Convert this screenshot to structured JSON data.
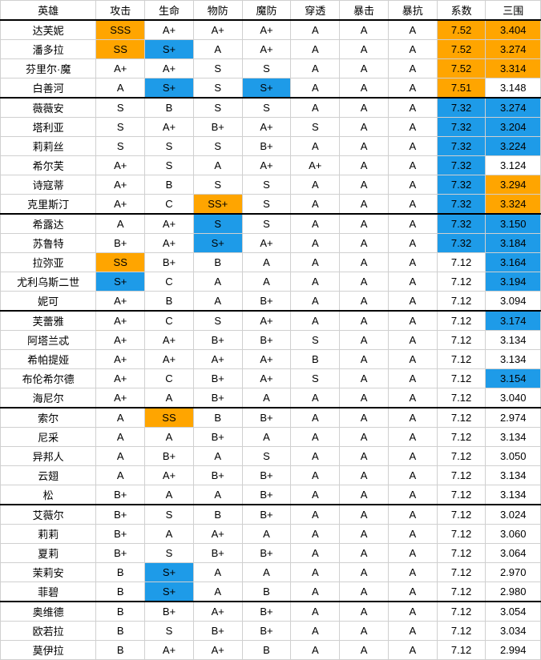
{
  "headers": [
    "英雄",
    "攻击",
    "生命",
    "物防",
    "魔防",
    "穿透",
    "暴击",
    "暴抗",
    "系数",
    "三围"
  ],
  "colors": {
    "orange": "#ffa500",
    "blue": "#1e9be8"
  },
  "rows": [
    {
      "cells": [
        "达芙妮",
        "SSS",
        "A+",
        "A+",
        "A+",
        "A",
        "A",
        "A",
        "7.52",
        "3.404"
      ],
      "hl": {
        "1": "orange",
        "8": "orange",
        "9": "orange"
      },
      "sep": true
    },
    {
      "cells": [
        "潘多拉",
        "SS",
        "S+",
        "A",
        "A+",
        "A",
        "A",
        "A",
        "7.52",
        "3.274"
      ],
      "hl": {
        "1": "orange",
        "2": "blue",
        "8": "orange",
        "9": "orange"
      }
    },
    {
      "cells": [
        "芬里尔·魔",
        "A+",
        "A+",
        "S",
        "S",
        "A",
        "A",
        "A",
        "7.52",
        "3.314"
      ],
      "hl": {
        "8": "orange",
        "9": "orange"
      }
    },
    {
      "cells": [
        "白善河",
        "A",
        "S+",
        "S",
        "S+",
        "A",
        "A",
        "A",
        "7.51",
        "3.148"
      ],
      "hl": {
        "2": "blue",
        "4": "blue",
        "8": "orange"
      }
    },
    {
      "cells": [
        "薇薇安",
        "S",
        "B",
        "S",
        "S",
        "A",
        "A",
        "A",
        "7.32",
        "3.274"
      ],
      "hl": {
        "8": "blue",
        "9": "blue"
      },
      "sep": true
    },
    {
      "cells": [
        "塔利亚",
        "S",
        "A+",
        "B+",
        "A+",
        "S",
        "A",
        "A",
        "7.32",
        "3.204"
      ],
      "hl": {
        "8": "blue",
        "9": "blue"
      }
    },
    {
      "cells": [
        "莉莉丝",
        "S",
        "S",
        "S",
        "B+",
        "A",
        "A",
        "A",
        "7.32",
        "3.224"
      ],
      "hl": {
        "8": "blue",
        "9": "blue"
      }
    },
    {
      "cells": [
        "希尔芙",
        "A+",
        "S",
        "A",
        "A+",
        "A+",
        "A",
        "A",
        "7.32",
        "3.124"
      ],
      "hl": {
        "8": "blue"
      }
    },
    {
      "cells": [
        "诗寇蒂",
        "A+",
        "B",
        "S",
        "S",
        "A",
        "A",
        "A",
        "7.32",
        "3.294"
      ],
      "hl": {
        "8": "blue",
        "9": "orange"
      }
    },
    {
      "cells": [
        "克里斯汀",
        "A+",
        "C",
        "SS+",
        "S",
        "A",
        "A",
        "A",
        "7.32",
        "3.324"
      ],
      "hl": {
        "3": "orange",
        "8": "blue",
        "9": "orange"
      }
    },
    {
      "cells": [
        "希露达",
        "A",
        "A+",
        "S",
        "S",
        "A",
        "A",
        "A",
        "7.32",
        "3.150"
      ],
      "hl": {
        "3": "blue",
        "8": "blue",
        "9": "blue"
      },
      "sep": true
    },
    {
      "cells": [
        "苏鲁特",
        "B+",
        "A+",
        "S+",
        "A+",
        "A",
        "A",
        "A",
        "7.32",
        "3.184"
      ],
      "hl": {
        "3": "blue",
        "8": "blue",
        "9": "blue"
      }
    },
    {
      "cells": [
        "拉弥亚",
        "SS",
        "B+",
        "B",
        "A",
        "A",
        "A",
        "A",
        "7.12",
        "3.164"
      ],
      "hl": {
        "1": "orange",
        "9": "blue"
      }
    },
    {
      "cells": [
        "尤利乌斯二世",
        "S+",
        "C",
        "A",
        "A",
        "A",
        "A",
        "A",
        "7.12",
        "3.194"
      ],
      "hl": {
        "1": "blue",
        "9": "blue"
      }
    },
    {
      "cells": [
        "妮可",
        "A+",
        "B",
        "A",
        "B+",
        "A",
        "A",
        "A",
        "7.12",
        "3.094"
      ]
    },
    {
      "cells": [
        "芙蕾雅",
        "A+",
        "C",
        "S",
        "A+",
        "A",
        "A",
        "A",
        "7.12",
        "3.174"
      ],
      "hl": {
        "9": "blue"
      },
      "sep": true
    },
    {
      "cells": [
        "阿塔兰忒",
        "A+",
        "A+",
        "B+",
        "B+",
        "S",
        "A",
        "A",
        "7.12",
        "3.134"
      ]
    },
    {
      "cells": [
        "希帕提娅",
        "A+",
        "A+",
        "A+",
        "A+",
        "B",
        "A",
        "A",
        "7.12",
        "3.134"
      ]
    },
    {
      "cells": [
        "布伦希尔德",
        "A+",
        "C",
        "B+",
        "A+",
        "S",
        "A",
        "A",
        "7.12",
        "3.154"
      ],
      "hl": {
        "9": "blue"
      }
    },
    {
      "cells": [
        "海尼尔",
        "A+",
        "A",
        "B+",
        "A",
        "A",
        "A",
        "A",
        "7.12",
        "3.040"
      ]
    },
    {
      "cells": [
        "索尔",
        "A",
        "SS",
        "B",
        "B+",
        "A",
        "A",
        "A",
        "7.12",
        "2.974"
      ],
      "hl": {
        "2": "orange"
      },
      "sep": true
    },
    {
      "cells": [
        "尼采",
        "A",
        "A",
        "B+",
        "A",
        "A",
        "A",
        "A",
        "7.12",
        "3.134"
      ]
    },
    {
      "cells": [
        "异邦人",
        "A",
        "B+",
        "A",
        "S",
        "A",
        "A",
        "A",
        "7.12",
        "3.050"
      ]
    },
    {
      "cells": [
        "云翅",
        "A",
        "A+",
        "B+",
        "B+",
        "A",
        "A",
        "A",
        "7.12",
        "3.134"
      ]
    },
    {
      "cells": [
        "松",
        "B+",
        "A",
        "A",
        "B+",
        "A",
        "A",
        "A",
        "7.12",
        "3.134"
      ]
    },
    {
      "cells": [
        "艾薇尔",
        "B+",
        "S",
        "B",
        "B+",
        "A",
        "A",
        "A",
        "7.12",
        "3.024"
      ],
      "sep": true
    },
    {
      "cells": [
        "莉莉",
        "B+",
        "A",
        "A+",
        "A",
        "A",
        "A",
        "A",
        "7.12",
        "3.060"
      ]
    },
    {
      "cells": [
        "夏莉",
        "B+",
        "S",
        "B+",
        "B+",
        "A",
        "A",
        "A",
        "7.12",
        "3.064"
      ]
    },
    {
      "cells": [
        "茉莉安",
        "B",
        "S+",
        "A",
        "A",
        "A",
        "A",
        "A",
        "7.12",
        "2.970"
      ],
      "hl": {
        "2": "blue"
      }
    },
    {
      "cells": [
        "菲碧",
        "B",
        "S+",
        "A",
        "B",
        "A",
        "A",
        "A",
        "7.12",
        "2.980"
      ],
      "hl": {
        "2": "blue"
      }
    },
    {
      "cells": [
        "奥维德",
        "B",
        "B+",
        "A+",
        "B+",
        "A",
        "A",
        "A",
        "7.12",
        "3.054"
      ],
      "sep": true
    },
    {
      "cells": [
        "欧若拉",
        "B",
        "S",
        "B+",
        "B+",
        "A",
        "A",
        "A",
        "7.12",
        "3.034"
      ]
    },
    {
      "cells": [
        "莫伊拉",
        "B",
        "A+",
        "A+",
        "B",
        "A",
        "A",
        "A",
        "7.12",
        "2.994"
      ]
    }
  ]
}
